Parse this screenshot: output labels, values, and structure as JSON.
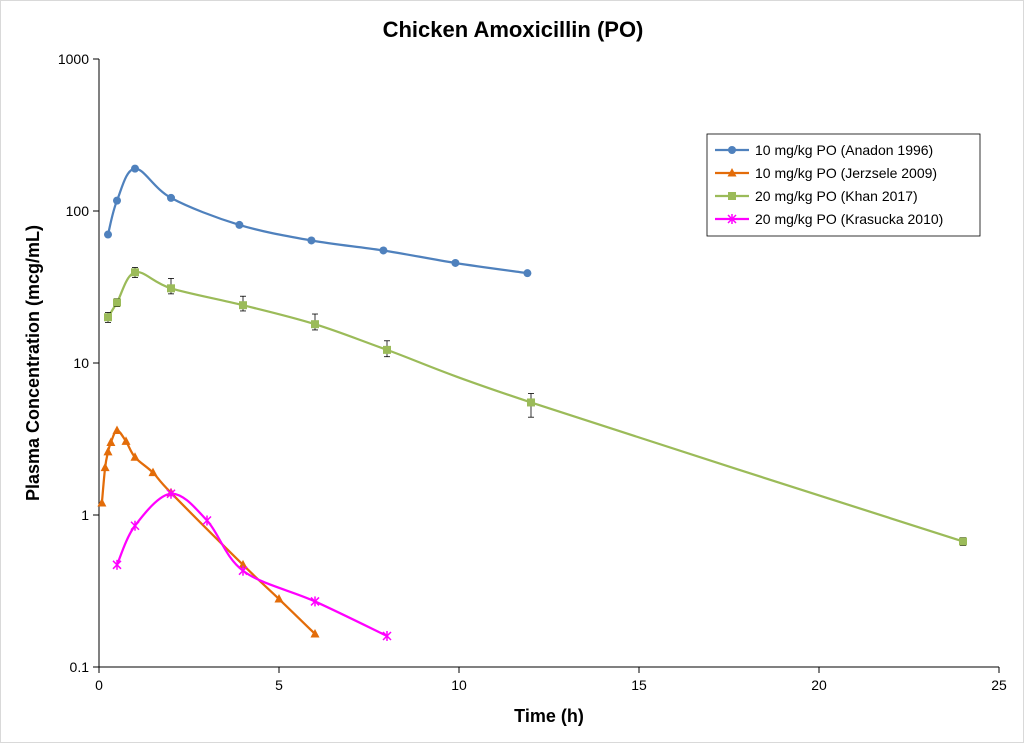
{
  "chart_data": {
    "type": "line",
    "title": "Chicken Amoxicillin (PO)",
    "xlabel": "Time (h)",
    "ylabel": "Plasma Concentration (mcg/mL)",
    "xlim": [
      0,
      25
    ],
    "ylim": [
      0.1,
      1000
    ],
    "yscale": "log",
    "x_ticks": [
      "0",
      "5",
      "10",
      "15",
      "20",
      "25"
    ],
    "y_ticks": [
      "0.1",
      "1",
      "10",
      "100",
      "1000"
    ],
    "grid": false,
    "legend_position": "top-right",
    "series": [
      {
        "name": "10 mg/kg PO (Anadon 1996)",
        "color": "#4f81bd",
        "marker": "circle",
        "x": [
          0.25,
          0.5,
          1,
          2,
          3.9,
          5.9,
          7.9,
          9.9,
          11.9
        ],
        "y": [
          70,
          117,
          190,
          122,
          81,
          64,
          55,
          45.5,
          39
        ]
      },
      {
        "name": "10 mg/kg PO (Jerzsele 2009)",
        "color": "#e36c09",
        "marker": "triangle",
        "x": [
          0.08,
          0.17,
          0.25,
          0.33,
          0.5,
          0.75,
          1,
          1.5,
          2,
          4,
          5,
          6
        ],
        "y": [
          1.2,
          2.05,
          2.6,
          3.0,
          3.6,
          3.05,
          2.4,
          1.9,
          1.4,
          0.47,
          0.28,
          0.165
        ]
      },
      {
        "name": "20 mg/kg PO (Khan 2017)",
        "color": "#9bbb59",
        "marker": "square",
        "x": [
          0.25,
          0.5,
          1,
          2,
          4,
          6,
          8,
          12,
          24
        ],
        "y": [
          20,
          25,
          39.5,
          31,
          24,
          18,
          12.2,
          5.5,
          0.67
        ],
        "err_up": [
          1.5,
          1.5,
          3,
          5,
          3.5,
          3,
          1.8,
          0.8,
          0.04
        ],
        "err_down": [
          1.5,
          1.5,
          3,
          2.5,
          2,
          1.5,
          1.2,
          1.1,
          0.04
        ]
      },
      {
        "name": "20 mg/kg PO (Krasucka 2010)",
        "color": "#ff00ff",
        "marker": "star",
        "x": [
          0.5,
          1,
          2,
          3,
          4,
          6,
          8
        ],
        "y": [
          0.47,
          0.85,
          1.38,
          0.92,
          0.43,
          0.27,
          0.16
        ]
      }
    ]
  }
}
